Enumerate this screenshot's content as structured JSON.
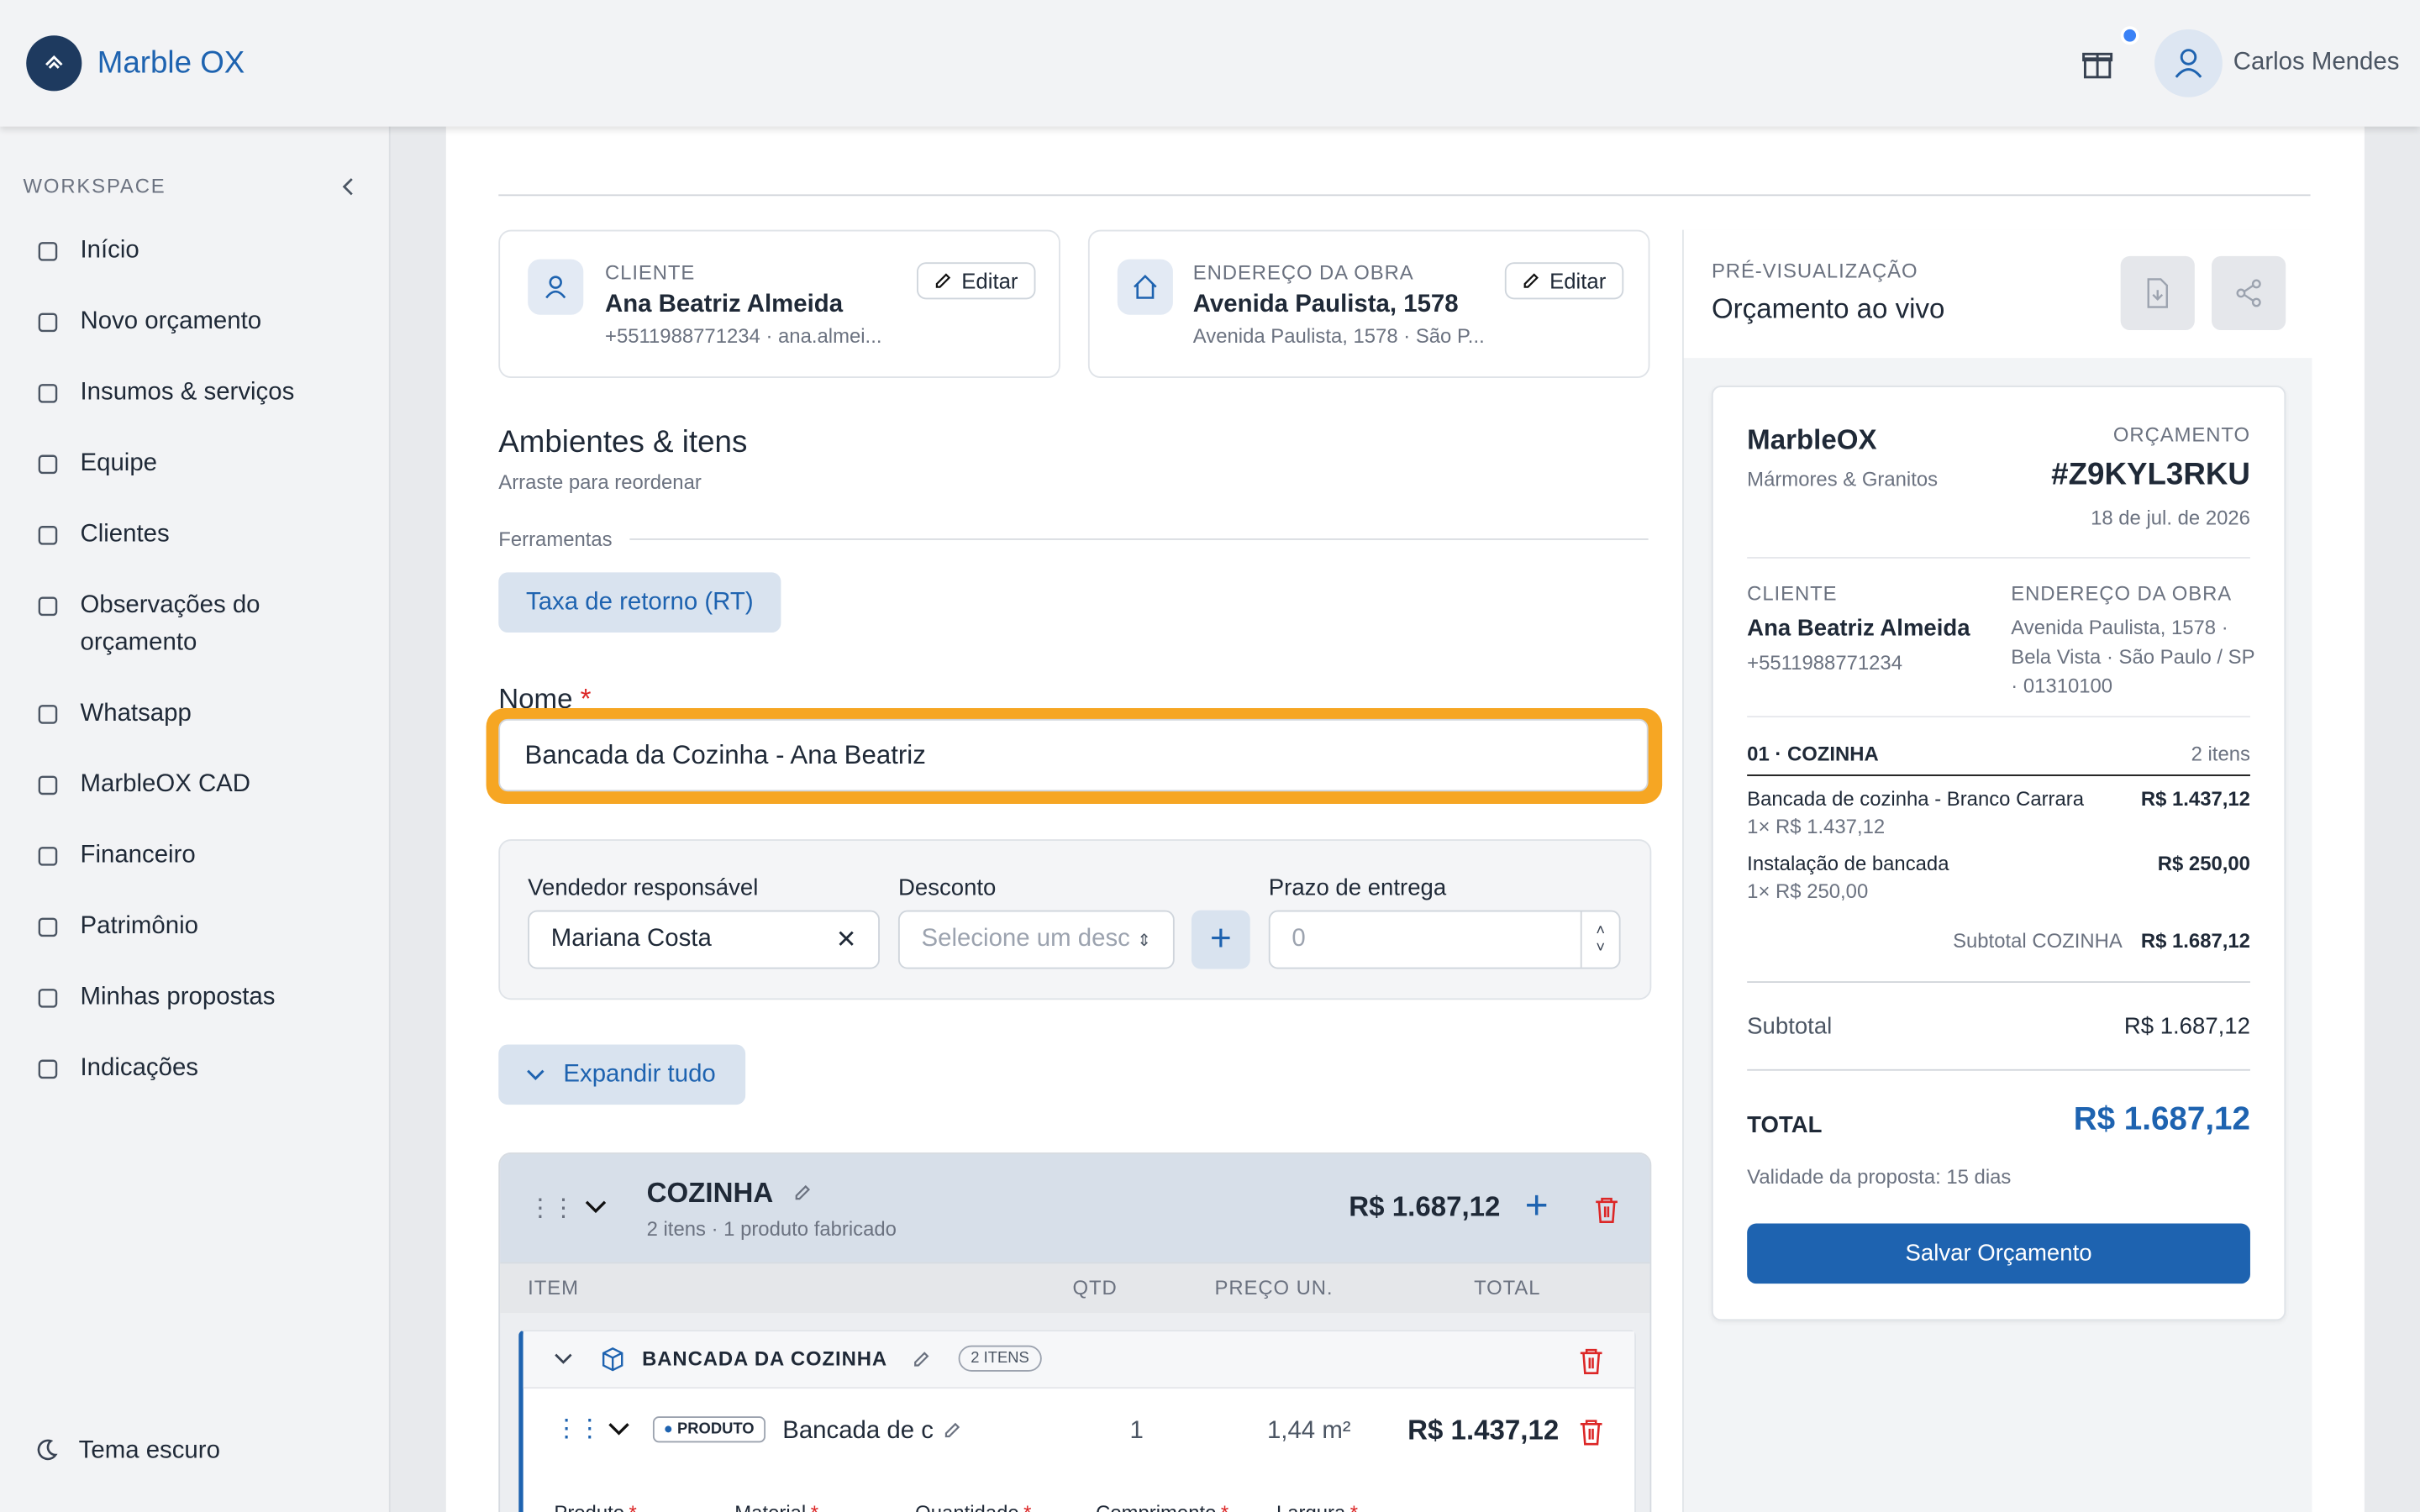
{
  "header": {
    "brand": "Marble OX",
    "user": "Carlos Mendes"
  },
  "sidebar": {
    "section": "WORKSPACE",
    "items": [
      "Início",
      "Novo orçamento",
      "Insumos & serviços",
      "Equipe",
      "Clientes",
      "Observações do orçamento",
      "Whatsapp",
      "MarbleOX CAD",
      "Financeiro",
      "Patrimônio",
      "Minhas propostas",
      "Indicações"
    ],
    "theme": "Tema escuro"
  },
  "client_card": {
    "label": "CLIENTE",
    "name": "Ana Beatriz Almeida",
    "detail": "+5511988771234 · ana.almei...",
    "action": "Editar"
  },
  "address_card": {
    "label": "ENDEREÇO DA OBRA",
    "name": "Avenida Paulista, 1578",
    "detail": "Avenida Paulista, 1578 · São P...",
    "action": "Editar"
  },
  "section": {
    "title": "Ambientes & itens",
    "subtitle": "Arraste para reordenar",
    "tools_label": "Ferramentas",
    "tool_button": "Taxa de retorno (RT)"
  },
  "form": {
    "name_label": "Nome",
    "required": "*",
    "name_value": "Bancada da Cozinha - Ana Beatriz",
    "seller_label": "Vendedor responsável",
    "seller_value": "Mariana Costa",
    "discount_label": "Desconto",
    "discount_placeholder": "Selecione um desc",
    "deadline_label": "Prazo de entrega",
    "deadline_placeholder": "0",
    "expand": "Expandir tudo"
  },
  "environment": {
    "name": "COZINHA",
    "summary": "2 itens · 1 produto fabricado",
    "total": "R$ 1.687,12",
    "columns": [
      "ITEM",
      "QTD",
      "PREÇO UN.",
      "TOTAL"
    ],
    "group": {
      "name": "BANCADA DA COZINHA",
      "badge": "2 ITENS"
    },
    "item": {
      "tag": "PRODUTO",
      "name": "Bancada de c",
      "qty": "1",
      "unit": "1,44 m²",
      "total": "R$ 1.437,12"
    },
    "fields": [
      "Produto",
      "Material",
      "Quantidade",
      "Comprimento",
      "Largura"
    ]
  },
  "preview": {
    "label": "PRÉ-VISUALIZAÇÃO",
    "title": "Orçamento ao vivo",
    "company": "MarbleOX",
    "company_sub": "Mármores & Granitos",
    "doc_label": "ORÇAMENTO",
    "number": "#Z9KYL3RKU",
    "date": "18 de jul. de 2026",
    "client_label": "CLIENTE",
    "client_name": "Ana Beatriz Almeida",
    "client_phone": "+5511988771234",
    "address_label": "ENDEREÇO DA OBRA",
    "address": "Avenida Paulista, 1578 · Bela Vista · São Paulo / SP · 01310100",
    "env": "01 · COZINHA",
    "env_count": "2 itens",
    "lines": [
      {
        "name": "Bancada de cozinha - Branco Carrara",
        "detail": "1× R$ 1.437,12",
        "total": "R$ 1.437,12"
      },
      {
        "name": "Instalação de bancada",
        "detail": "1× R$ 250,00",
        "total": "R$ 250,00"
      }
    ],
    "env_subtotal_label": "Subtotal COZINHA",
    "env_subtotal": "R$ 1.687,12",
    "subtotal_label": "Subtotal",
    "subtotal": "R$ 1.687,12",
    "total_label": "TOTAL",
    "total": "R$ 1.687,12",
    "validity": "Validade da proposta: 15 dias",
    "save": "Salvar Orçamento"
  }
}
